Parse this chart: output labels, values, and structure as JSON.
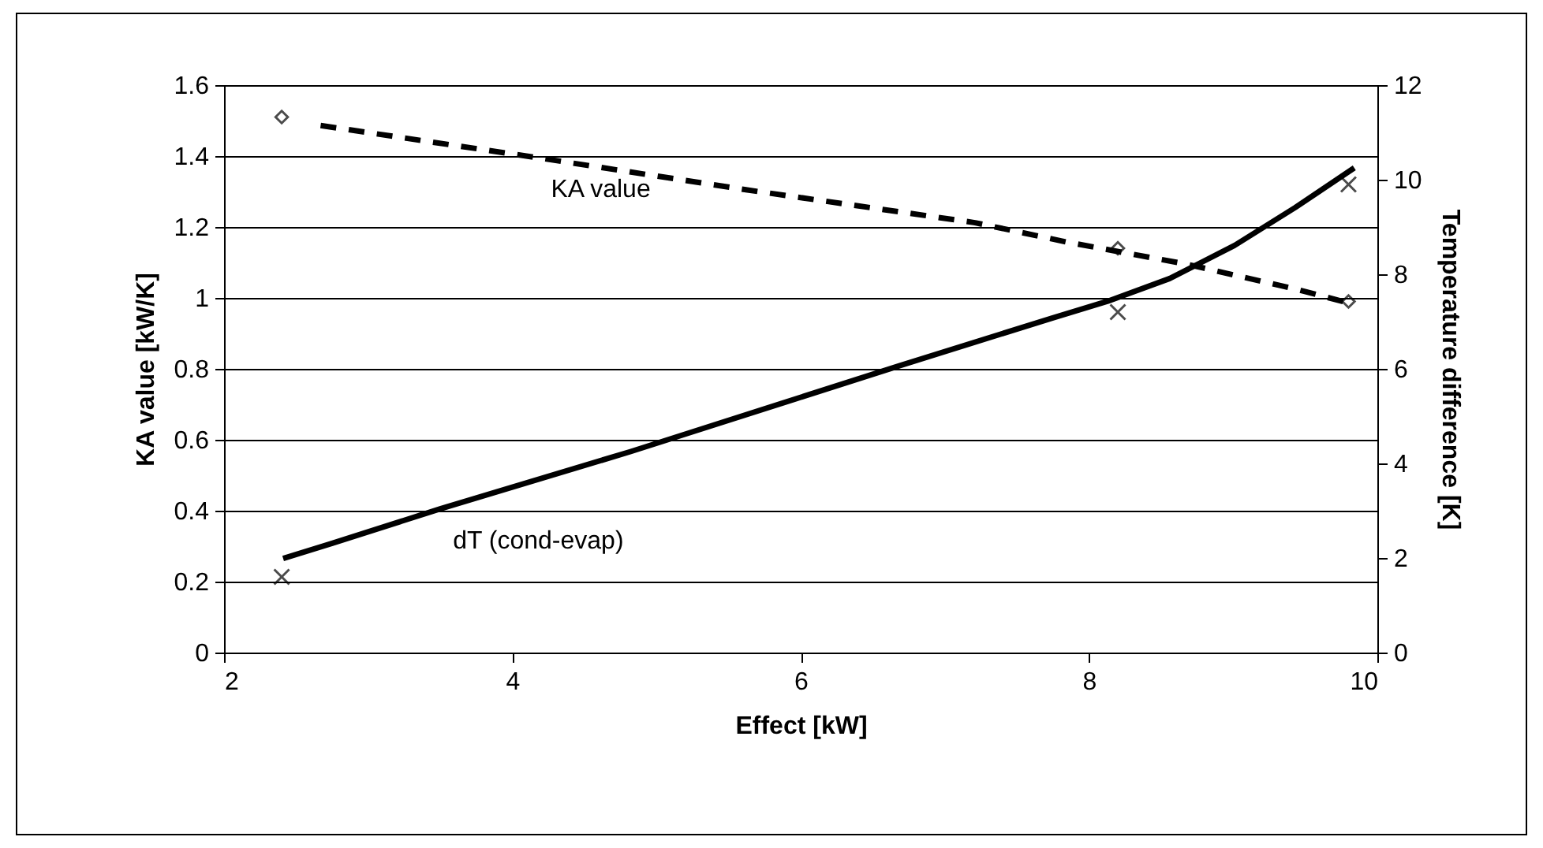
{
  "chart_data": {
    "type": "line",
    "xlabel": "Effect [kW]",
    "ylabel": "KA value [kW/K]",
    "y2label": "Temperature difference [K]",
    "xlim": [
      2,
      10
    ],
    "xticks": [
      2,
      4,
      6,
      8,
      10
    ],
    "ylim": [
      0,
      1.6
    ],
    "yticks": [
      0,
      0.2,
      0.4,
      0.6,
      0.8,
      1,
      1.2,
      1.4,
      1.6
    ],
    "y2lim": [
      0,
      12
    ],
    "y2ticks": [
      0,
      2,
      4,
      6,
      8,
      10,
      12
    ],
    "grid": "y",
    "series": [
      {
        "name": "KA value",
        "color": "#000000",
        "line_style": "dashed",
        "x": [
          2.67,
          4.18,
          5.62,
          7.21,
          7.84,
          8.69,
          9.43,
          9.8
        ],
        "values": [
          1.486,
          1.395,
          1.305,
          1.212,
          1.158,
          1.094,
          1.025,
          0.986
        ]
      },
      {
        "type": "scatter",
        "color": "#000000",
        "marker": "diamond",
        "x": [
          2.4,
          8.2,
          9.8
        ],
        "values": [
          1.51,
          1.14,
          0.99
        ]
      },
      {
        "name": "dT (cond-evap)",
        "axis": "y2",
        "color": "#000000",
        "line_style": "solid",
        "x": [
          2.41,
          2.75,
          3.5,
          4.82,
          6.68,
          7.74,
          8.13,
          8.56,
          9.01,
          9.43,
          9.84
        ],
        "values": [
          1.99,
          2.31,
          3.04,
          4.25,
          6.06,
          7.07,
          7.43,
          7.91,
          8.61,
          9.41,
          10.25
        ]
      },
      {
        "type": "scatter",
        "axis": "y2",
        "color": "#000000",
        "marker": "cross",
        "x": [
          2.4,
          8.2,
          9.8
        ],
        "values": [
          1.6,
          7.2,
          9.9
        ]
      }
    ]
  }
}
